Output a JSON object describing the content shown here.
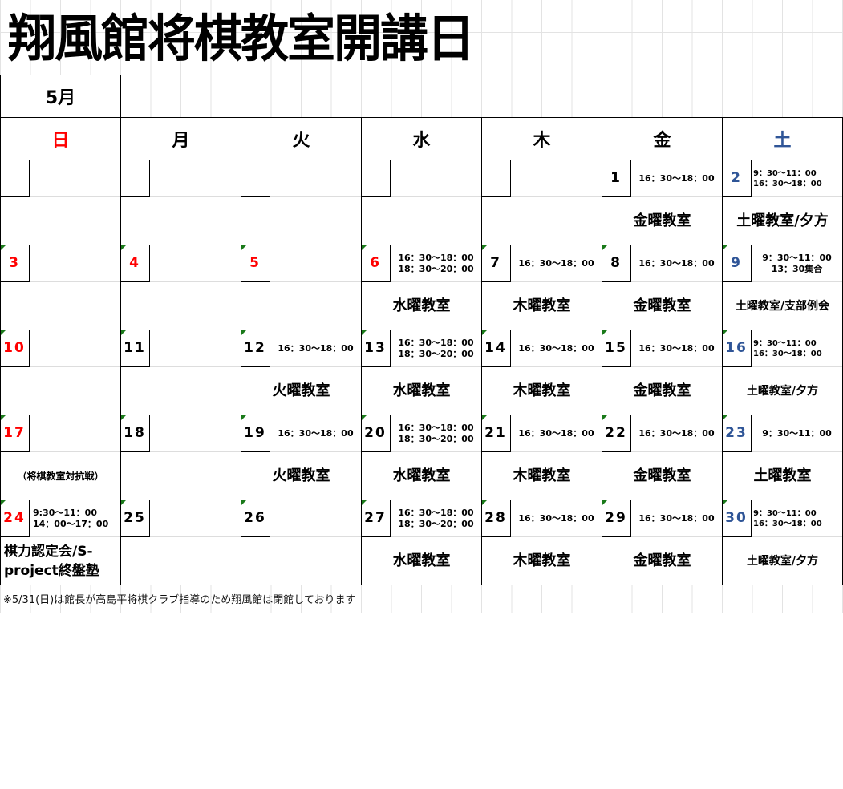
{
  "title": "翔風館将棋教室開講日",
  "month": "5月",
  "colors": {
    "sunday": "#ff0000",
    "saturday": "#2f5597",
    "normal": "#000000",
    "comment_marker": "#1a7a1a"
  },
  "weekdays": [
    {
      "label": "日",
      "color": "#ff0000"
    },
    {
      "label": "月",
      "color": "#000000"
    },
    {
      "label": "火",
      "color": "#000000"
    },
    {
      "label": "水",
      "color": "#000000"
    },
    {
      "label": "木",
      "color": "#000000"
    },
    {
      "label": "金",
      "color": "#000000"
    },
    {
      "label": "土",
      "color": "#2f5597"
    }
  ],
  "weeks": [
    {
      "days": [
        {
          "num": "",
          "times": [],
          "event": ""
        },
        {
          "num": "",
          "times": [],
          "event": ""
        },
        {
          "num": "",
          "times": [],
          "event": ""
        },
        {
          "num": "",
          "times": [],
          "event": ""
        },
        {
          "num": "",
          "times": [],
          "event": ""
        },
        {
          "num": "1",
          "color": "#000000",
          "times": [
            "16：30～18：00"
          ],
          "event": "金曜教室"
        },
        {
          "num": "2",
          "color": "#2f5597",
          "times": [
            "9：30～11：00",
            "16：30～18：00"
          ],
          "event": "土曜教室/夕方"
        }
      ]
    },
    {
      "days": [
        {
          "num": "3",
          "color": "#ff0000",
          "times": [],
          "event": ""
        },
        {
          "num": "4",
          "color": "#ff0000",
          "times": [],
          "event": ""
        },
        {
          "num": "5",
          "color": "#ff0000",
          "times": [],
          "event": ""
        },
        {
          "num": "6",
          "color": "#ff0000",
          "times": [
            "16：30～18：00",
            "18：30～20：00"
          ],
          "event": "水曜教室"
        },
        {
          "num": "7",
          "color": "#000000",
          "times": [
            "16：30～18：00"
          ],
          "event": "木曜教室"
        },
        {
          "num": "8",
          "color": "#000000",
          "times": [
            "16：30～18：00"
          ],
          "event": "金曜教室"
        },
        {
          "num": "9",
          "color": "#2f5597",
          "times": [
            "9：30～11：00",
            "13：30集合"
          ],
          "event": "土曜教室/支部例会"
        }
      ]
    },
    {
      "days": [
        {
          "num": "10",
          "color": "#ff0000",
          "times": [],
          "event": ""
        },
        {
          "num": "11",
          "color": "#000000",
          "times": [],
          "event": ""
        },
        {
          "num": "12",
          "color": "#000000",
          "times": [
            "16：30～18：00"
          ],
          "event": "火曜教室"
        },
        {
          "num": "13",
          "color": "#000000",
          "times": [
            "16：30～18：00",
            "18：30～20：00"
          ],
          "event": "水曜教室"
        },
        {
          "num": "14",
          "color": "#000000",
          "times": [
            "16：30～18：00"
          ],
          "event": "木曜教室"
        },
        {
          "num": "15",
          "color": "#000000",
          "times": [
            "16：30～18：00"
          ],
          "event": "金曜教室"
        },
        {
          "num": "16",
          "color": "#2f5597",
          "times": [
            "9：30～11：00",
            "16：30～18：00"
          ],
          "event": "土曜教室/夕方"
        }
      ]
    },
    {
      "days": [
        {
          "num": "17",
          "color": "#ff0000",
          "times": [],
          "event": "（将棋教室対抗戦）"
        },
        {
          "num": "18",
          "color": "#000000",
          "times": [],
          "event": ""
        },
        {
          "num": "19",
          "color": "#000000",
          "times": [
            "16：30～18：00"
          ],
          "event": "火曜教室"
        },
        {
          "num": "20",
          "color": "#000000",
          "times": [
            "16：30～18：00",
            "18：30～20：00"
          ],
          "event": "水曜教室"
        },
        {
          "num": "21",
          "color": "#000000",
          "times": [
            "16：30～18：00"
          ],
          "event": "木曜教室"
        },
        {
          "num": "22",
          "color": "#000000",
          "times": [
            "16：30～18：00"
          ],
          "event": "金曜教室"
        },
        {
          "num": "23",
          "color": "#2f5597",
          "times": [
            "9：30～11：00"
          ],
          "event": "土曜教室"
        }
      ]
    },
    {
      "days": [
        {
          "num": "24",
          "color": "#ff0000",
          "times": [
            "9:30～11：00",
            "14：00～17：00"
          ],
          "event": "棋力認定会/S-project終盤塾"
        },
        {
          "num": "25",
          "color": "#000000",
          "times": [],
          "event": ""
        },
        {
          "num": "26",
          "color": "#000000",
          "times": [],
          "event": ""
        },
        {
          "num": "27",
          "color": "#000000",
          "times": [
            "16：30～18：00",
            "18：30～20：00"
          ],
          "event": "水曜教室"
        },
        {
          "num": "28",
          "color": "#000000",
          "times": [
            "16：30～18：00"
          ],
          "event": "木曜教室"
        },
        {
          "num": "29",
          "color": "#000000",
          "times": [
            "16：30～18：00"
          ],
          "event": "金曜教室"
        },
        {
          "num": "30",
          "color": "#2f5597",
          "times": [
            "9：30～11：00",
            "16：30～18：00"
          ],
          "event": "土曜教室/夕方"
        }
      ]
    }
  ],
  "footer_note": "※5/31(日)は館長が高島平将棋クラブ指導のため翔風館は閉館しております"
}
